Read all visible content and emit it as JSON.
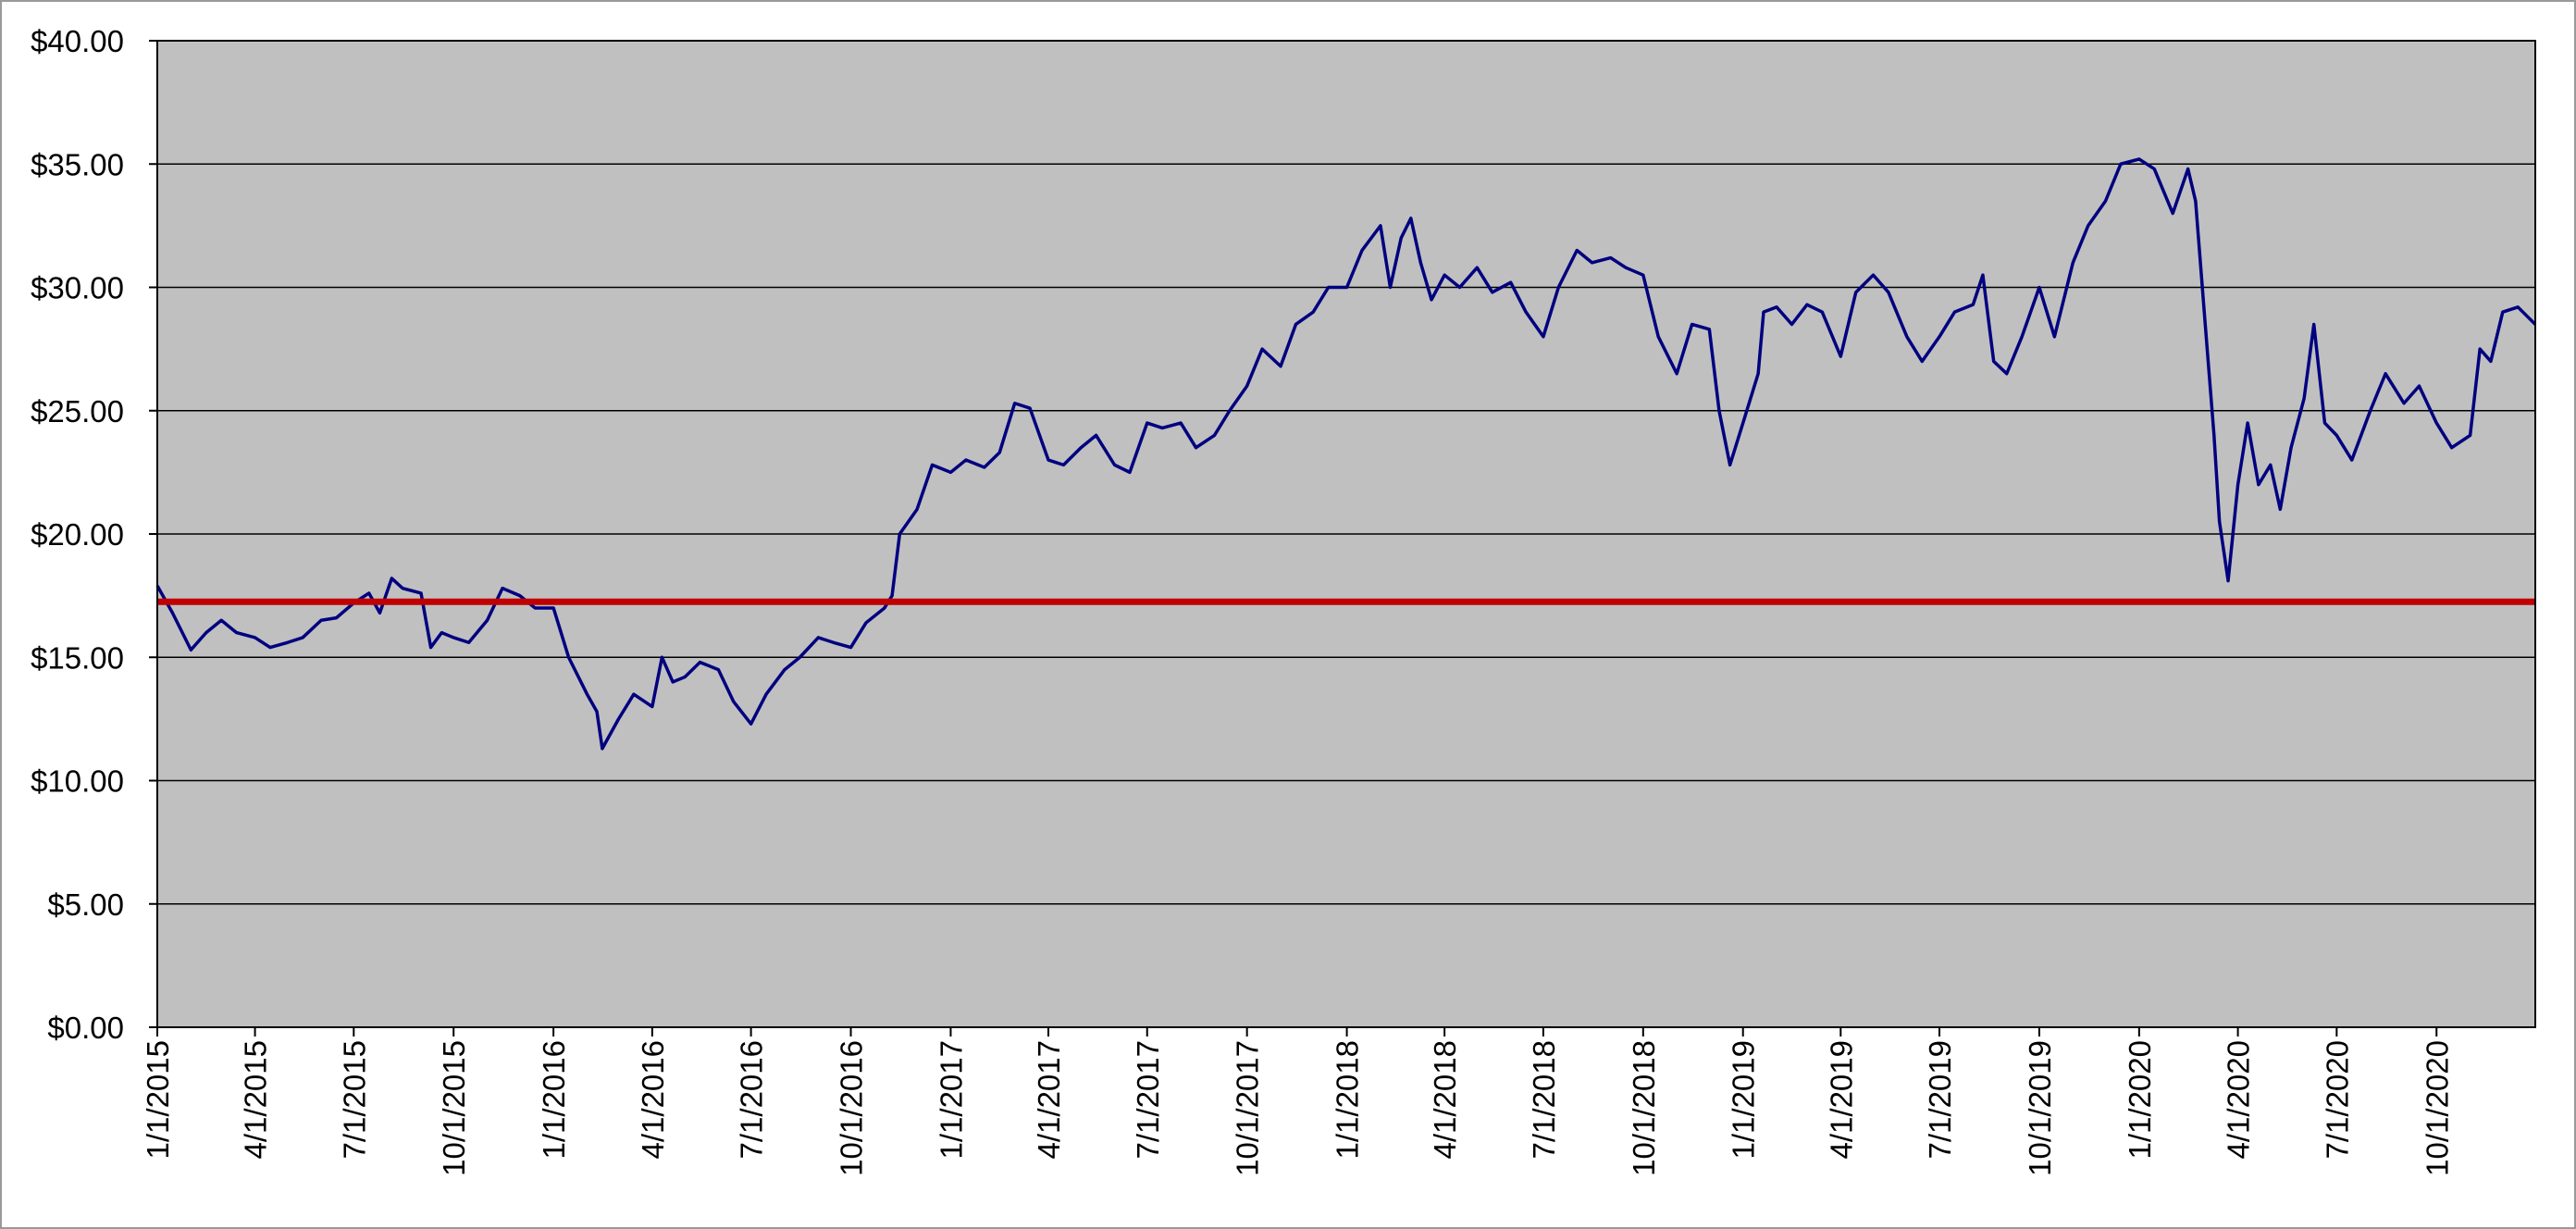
{
  "chart_data": {
    "type": "line",
    "xlim": [
      "2015-01-01",
      "2020-12-31"
    ],
    "ylim": [
      0,
      40
    ],
    "yticks": [
      {
        "value": 0,
        "label": "$0.00"
      },
      {
        "value": 5,
        "label": "$5.00"
      },
      {
        "value": 10,
        "label": "$10.00"
      },
      {
        "value": 15,
        "label": "$15.00"
      },
      {
        "value": 20,
        "label": "$20.00"
      },
      {
        "value": 25,
        "label": "$25.00"
      },
      {
        "value": 30,
        "label": "$30.00"
      },
      {
        "value": 35,
        "label": "$35.00"
      },
      {
        "value": 40,
        "label": "$40.00"
      }
    ],
    "xticks": [
      {
        "value": "2015-01-01",
        "label": "1/1/2015"
      },
      {
        "value": "2015-04-01",
        "label": "4/1/2015"
      },
      {
        "value": "2015-07-01",
        "label": "7/1/2015"
      },
      {
        "value": "2015-10-01",
        "label": "10/1/2015"
      },
      {
        "value": "2016-01-01",
        "label": "1/1/2016"
      },
      {
        "value": "2016-04-01",
        "label": "4/1/2016"
      },
      {
        "value": "2016-07-01",
        "label": "7/1/2016"
      },
      {
        "value": "2016-10-01",
        "label": "10/1/2016"
      },
      {
        "value": "2017-01-01",
        "label": "1/1/2017"
      },
      {
        "value": "2017-04-01",
        "label": "4/1/2017"
      },
      {
        "value": "2017-07-01",
        "label": "7/1/2017"
      },
      {
        "value": "2017-10-01",
        "label": "10/1/2017"
      },
      {
        "value": "2018-01-01",
        "label": "1/1/2018"
      },
      {
        "value": "2018-04-01",
        "label": "4/1/2018"
      },
      {
        "value": "2018-07-01",
        "label": "7/1/2018"
      },
      {
        "value": "2018-10-01",
        "label": "10/1/2018"
      },
      {
        "value": "2019-01-01",
        "label": "1/1/2019"
      },
      {
        "value": "2019-04-01",
        "label": "4/1/2019"
      },
      {
        "value": "2019-07-01",
        "label": "7/1/2019"
      },
      {
        "value": "2019-10-01",
        "label": "10/1/2019"
      },
      {
        "value": "2020-01-01",
        "label": "1/1/2020"
      },
      {
        "value": "2020-04-01",
        "label": "4/1/2020"
      },
      {
        "value": "2020-07-01",
        "label": "7/1/2020"
      },
      {
        "value": "2020-10-01",
        "label": "10/1/2020"
      }
    ],
    "grid": true,
    "plot_background": "#c0c0c0",
    "reference_line": {
      "value": 17.25,
      "color": "#c00000"
    },
    "x": [
      "2015-01-01",
      "2015-01-15",
      "2015-02-01",
      "2015-02-15",
      "2015-03-01",
      "2015-03-15",
      "2015-04-01",
      "2015-04-15",
      "2015-05-01",
      "2015-05-15",
      "2015-06-01",
      "2015-06-15",
      "2015-07-01",
      "2015-07-15",
      "2015-07-25",
      "2015-08-05",
      "2015-08-15",
      "2015-09-01",
      "2015-09-10",
      "2015-09-20",
      "2015-10-01",
      "2015-10-15",
      "2015-11-01",
      "2015-11-15",
      "2015-12-01",
      "2015-12-15",
      "2016-01-01",
      "2016-01-15",
      "2016-02-01",
      "2016-02-10",
      "2016-02-15",
      "2016-03-01",
      "2016-03-15",
      "2016-04-01",
      "2016-04-10",
      "2016-04-20",
      "2016-05-01",
      "2016-05-15",
      "2016-06-01",
      "2016-06-15",
      "2016-07-01",
      "2016-07-15",
      "2016-08-01",
      "2016-08-15",
      "2016-09-01",
      "2016-09-15",
      "2016-10-01",
      "2016-10-15",
      "2016-11-01",
      "2016-11-08",
      "2016-11-15",
      "2016-12-01",
      "2016-12-15",
      "2017-01-01",
      "2017-01-15",
      "2017-02-01",
      "2017-02-15",
      "2017-03-01",
      "2017-03-15",
      "2017-04-01",
      "2017-04-15",
      "2017-05-01",
      "2017-05-15",
      "2017-06-01",
      "2017-06-15",
      "2017-07-01",
      "2017-07-15",
      "2017-08-01",
      "2017-08-15",
      "2017-09-01",
      "2017-09-15",
      "2017-10-01",
      "2017-10-15",
      "2017-11-01",
      "2017-11-15",
      "2017-12-01",
      "2017-12-15",
      "2018-01-01",
      "2018-01-15",
      "2018-02-01",
      "2018-02-10",
      "2018-02-20",
      "2018-03-01",
      "2018-03-10",
      "2018-03-20",
      "2018-04-01",
      "2018-04-15",
      "2018-05-01",
      "2018-05-15",
      "2018-06-01",
      "2018-06-15",
      "2018-07-01",
      "2018-07-15",
      "2018-08-01",
      "2018-08-15",
      "2018-09-01",
      "2018-09-15",
      "2018-10-01",
      "2018-10-15",
      "2018-11-01",
      "2018-11-15",
      "2018-12-01",
      "2018-12-10",
      "2018-12-20",
      "2019-01-01",
      "2019-01-15",
      "2019-01-20",
      "2019-02-01",
      "2019-02-15",
      "2019-03-01",
      "2019-03-15",
      "2019-04-01",
      "2019-04-15",
      "2019-05-01",
      "2019-05-15",
      "2019-06-01",
      "2019-06-15",
      "2019-07-01",
      "2019-07-15",
      "2019-08-01",
      "2019-08-10",
      "2019-08-20",
      "2019-09-01",
      "2019-09-15",
      "2019-10-01",
      "2019-10-15",
      "2019-11-01",
      "2019-11-15",
      "2019-12-01",
      "2019-12-15",
      "2020-01-01",
      "2020-01-15",
      "2020-02-01",
      "2020-02-15",
      "2020-02-22",
      "2020-03-01",
      "2020-03-10",
      "2020-03-15",
      "2020-03-23",
      "2020-04-01",
      "2020-04-10",
      "2020-04-20",
      "2020-05-01",
      "2020-05-10",
      "2020-05-20",
      "2020-06-01",
      "2020-06-10",
      "2020-06-20",
      "2020-07-01",
      "2020-07-15",
      "2020-08-01",
      "2020-08-15",
      "2020-09-01",
      "2020-09-15",
      "2020-10-01",
      "2020-10-15",
      "2020-11-01",
      "2020-11-10",
      "2020-11-20",
      "2020-12-01",
      "2020-12-15",
      "2020-12-31"
    ],
    "series": [
      {
        "color": "#000080",
        "values": [
          17.9,
          16.8,
          15.3,
          16.0,
          16.5,
          16.0,
          15.8,
          15.4,
          15.6,
          15.8,
          16.5,
          16.6,
          17.2,
          17.6,
          16.8,
          18.2,
          17.8,
          17.6,
          15.4,
          16.0,
          15.8,
          15.6,
          16.5,
          17.8,
          17.5,
          17.0,
          17.0,
          15.0,
          13.5,
          12.8,
          11.3,
          12.5,
          13.5,
          13.0,
          15.0,
          14.0,
          14.2,
          14.8,
          14.5,
          13.2,
          12.3,
          13.5,
          14.5,
          15.0,
          15.8,
          15.6,
          15.4,
          16.4,
          17.0,
          17.5,
          20.0,
          21.0,
          22.8,
          22.5,
          23.0,
          22.7,
          23.3,
          25.3,
          25.1,
          23.0,
          22.8,
          23.5,
          24.0,
          22.8,
          22.5,
          24.5,
          24.3,
          24.5,
          23.5,
          24.0,
          25.0,
          26.0,
          27.5,
          26.8,
          28.5,
          29.0,
          30.0,
          30.0,
          31.5,
          32.5,
          30.0,
          32.0,
          32.8,
          31.0,
          29.5,
          30.5,
          30.0,
          30.8,
          29.8,
          30.2,
          29.0,
          28.0,
          30.0,
          31.5,
          31.0,
          31.2,
          30.8,
          30.5,
          28.0,
          26.5,
          28.5,
          28.3,
          25.0,
          22.8,
          24.5,
          26.5,
          29.0,
          29.2,
          28.5,
          29.3,
          29.0,
          27.2,
          29.8,
          30.5,
          29.8,
          28.0,
          27.0,
          28.0,
          29.0,
          29.3,
          30.5,
          27.0,
          26.5,
          28.0,
          30.0,
          28.0,
          31.0,
          32.5,
          33.5,
          35.0,
          35.2,
          34.8,
          33.0,
          34.8,
          33.5,
          29.0,
          24.0,
          20.5,
          18.1,
          22.0,
          24.5,
          22.0,
          22.8,
          21.0,
          23.5,
          25.5,
          28.5,
          24.5,
          24.0,
          23.0,
          25.0,
          26.5,
          25.3,
          26.0,
          24.5,
          23.5,
          24.0,
          27.5,
          27.0,
          29.0,
          29.2,
          28.5
        ]
      }
    ]
  }
}
